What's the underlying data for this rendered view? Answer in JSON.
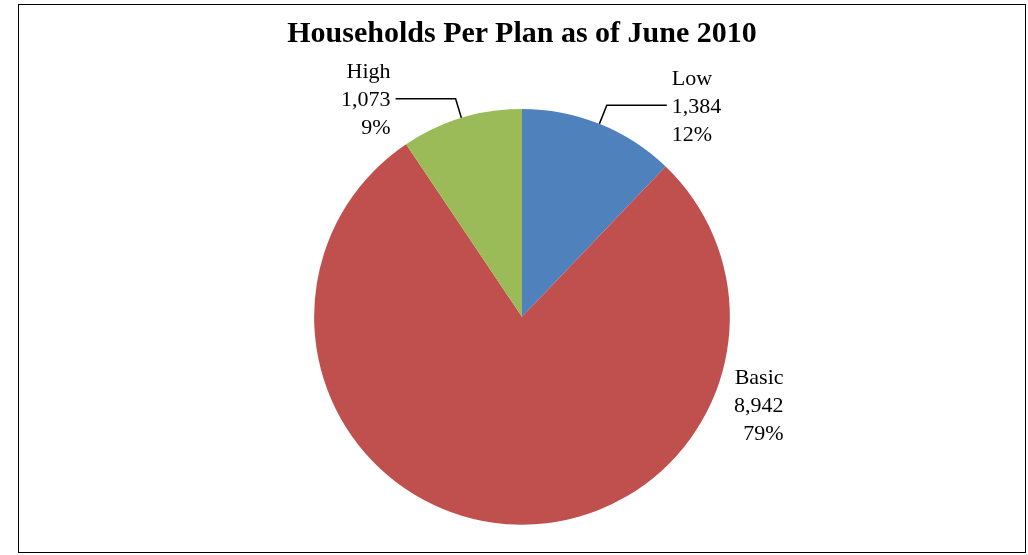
{
  "chart_data": {
    "type": "pie",
    "title": "Households Per Plan as of June 2010",
    "categories": [
      "Low",
      "Basic",
      "High"
    ],
    "values": [
      1384,
      8942,
      1073
    ],
    "colors": [
      "#4f81bd",
      "#c0504d",
      "#9bbb59"
    ],
    "value_labels": [
      "1,384\n12%",
      "8,942\n79%",
      "1,073\n9%"
    ],
    "legend": false
  }
}
